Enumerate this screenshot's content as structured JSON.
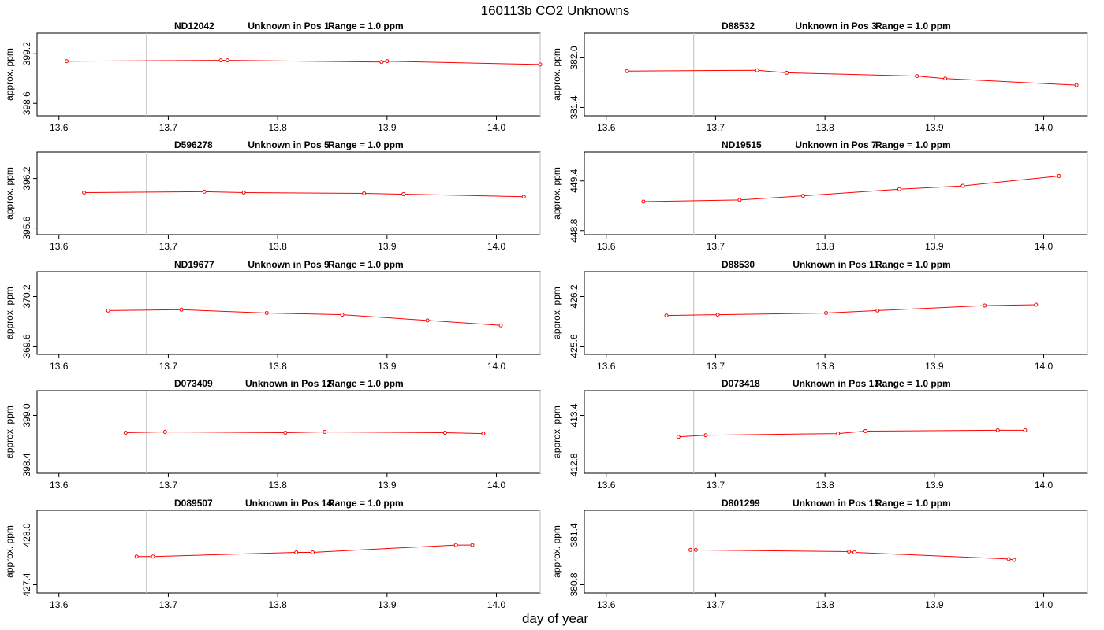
{
  "title": "160113b  CO2 Unknowns",
  "xlabel": "day of year",
  "ylabel": "approx. ppm",
  "colors": {
    "series": "#ff0000",
    "vline": "#c8c8c8",
    "axis": "#000000"
  },
  "chart_data": [
    {
      "type": "line",
      "id": "ND12042",
      "pos_label": "Unknown in Pos 1",
      "range_label": "Range = 1.0 ppm",
      "xlim": [
        13.58,
        14.04
      ],
      "ylim": [
        398.45,
        399.45
      ],
      "xticks": [
        13.6,
        13.7,
        13.8,
        13.9,
        14.0
      ],
      "xtick_labels": [
        "13.6",
        "13.7",
        "13.8",
        "13.9",
        "14.0"
      ],
      "yticks": [
        398.6,
        399.2
      ],
      "ytick_labels": [
        "398.6",
        "399.2"
      ],
      "vlines": [
        13.68,
        14.04
      ],
      "x": [
        13.607,
        13.748,
        13.754,
        13.895,
        13.9,
        14.04
      ],
      "y": [
        399.11,
        399.12,
        399.12,
        399.1,
        399.11,
        399.07
      ]
    },
    {
      "type": "line",
      "id": "D88532",
      "pos_label": "Unknown in Pos 3",
      "range_label": "Range = 1.0 ppm",
      "xlim": [
        13.58,
        14.04
      ],
      "ylim": [
        381.3,
        382.3
      ],
      "xticks": [
        13.6,
        13.7,
        13.8,
        13.9,
        14.0
      ],
      "xtick_labels": [
        "13.6",
        "13.7",
        "13.8",
        "13.9",
        "14.0"
      ],
      "yticks": [
        381.4,
        382.0
      ],
      "ytick_labels": [
        "381.4",
        "382.0"
      ],
      "vlines": [
        13.68,
        14.04
      ],
      "x": [
        13.619,
        13.738,
        13.765,
        13.884,
        13.91,
        14.03
      ],
      "y": [
        381.84,
        381.85,
        381.82,
        381.78,
        381.75,
        381.67
      ]
    },
    {
      "type": "line",
      "id": "D596278",
      "pos_label": "Unknown in Pos 5",
      "range_label": "Range = 1.0 ppm",
      "xlim": [
        13.58,
        14.04
      ],
      "ylim": [
        395.52,
        396.52
      ],
      "xticks": [
        13.6,
        13.7,
        13.8,
        13.9,
        14.0
      ],
      "xtick_labels": [
        "13.6",
        "13.7",
        "13.8",
        "13.9",
        "14.0"
      ],
      "yticks": [
        395.6,
        396.2
      ],
      "ytick_labels": [
        "395.6",
        "396.2"
      ],
      "vlines": [
        13.68,
        14.04
      ],
      "x": [
        13.623,
        13.733,
        13.769,
        13.879,
        13.915,
        14.025
      ],
      "y": [
        396.03,
        396.04,
        396.03,
        396.02,
        396.01,
        395.98
      ]
    },
    {
      "type": "line",
      "id": "ND19515",
      "pos_label": "Unknown in Pos 7",
      "range_label": "Range = 1.0 ppm",
      "xlim": [
        13.58,
        14.04
      ],
      "ylim": [
        448.75,
        449.75
      ],
      "xticks": [
        13.6,
        13.7,
        13.8,
        13.9,
        14.0
      ],
      "xtick_labels": [
        "13.6",
        "13.7",
        "13.8",
        "13.9",
        "14.0"
      ],
      "yticks": [
        448.8,
        449.4
      ],
      "ytick_labels": [
        "448.8",
        "449.4"
      ],
      "vlines": [
        13.68,
        14.04
      ],
      "x": [
        13.634,
        13.722,
        13.78,
        13.868,
        13.926,
        14.014
      ],
      "y": [
        449.15,
        449.17,
        449.22,
        449.3,
        449.34,
        449.46
      ]
    },
    {
      "type": "line",
      "id": "ND19677",
      "pos_label": "Unknown in Pos 9",
      "range_label": "Range = 1.0 ppm",
      "xlim": [
        13.58,
        14.04
      ],
      "ylim": [
        369.5,
        370.5
      ],
      "xticks": [
        13.6,
        13.7,
        13.8,
        13.9,
        14.0
      ],
      "xtick_labels": [
        "13.6",
        "13.7",
        "13.8",
        "13.9",
        "14.0"
      ],
      "yticks": [
        369.6,
        370.2
      ],
      "ytick_labels": [
        "369.6",
        "370.2"
      ],
      "vlines": [
        13.68,
        14.04
      ],
      "x": [
        13.645,
        13.712,
        13.79,
        13.859,
        13.937,
        14.004
      ],
      "y": [
        370.03,
        370.04,
        370.0,
        369.98,
        369.91,
        369.85
      ]
    },
    {
      "type": "line",
      "id": "D88530",
      "pos_label": "Unknown in Pos 11",
      "range_label": "Range = 1.0 ppm",
      "xlim": [
        13.58,
        14.04
      ],
      "ylim": [
        425.5,
        426.5
      ],
      "xticks": [
        13.6,
        13.7,
        13.8,
        13.9,
        14.0
      ],
      "xtick_labels": [
        "13.6",
        "13.7",
        "13.8",
        "13.9",
        "14.0"
      ],
      "yticks": [
        425.6,
        426.2
      ],
      "ytick_labels": [
        "425.6",
        "426.2"
      ],
      "vlines": [
        13.68,
        14.04
      ],
      "x": [
        13.655,
        13.702,
        13.801,
        13.848,
        13.946,
        13.993
      ],
      "y": [
        425.97,
        425.98,
        426.0,
        426.03,
        426.09,
        426.1
      ]
    },
    {
      "type": "line",
      "id": "D073409",
      "pos_label": "Unknown in Pos 12",
      "range_label": "Range = 1.0 ppm",
      "xlim": [
        13.58,
        14.04
      ],
      "ylim": [
        398.3,
        399.3
      ],
      "xticks": [
        13.6,
        13.7,
        13.8,
        13.9,
        14.0
      ],
      "xtick_labels": [
        "13.6",
        "13.7",
        "13.8",
        "13.9",
        "14.0"
      ],
      "yticks": [
        398.4,
        399.0
      ],
      "ytick_labels": [
        "398.4",
        "399.0"
      ],
      "vlines": [
        13.68,
        14.04
      ],
      "x": [
        13.661,
        13.697,
        13.807,
        13.843,
        13.953,
        13.988
      ],
      "y": [
        398.79,
        398.8,
        398.79,
        398.8,
        398.79,
        398.78
      ]
    },
    {
      "type": "line",
      "id": "D073418",
      "pos_label": "Unknown in Pos 13",
      "range_label": "Range = 1.0 ppm",
      "xlim": [
        13.58,
        14.04
      ],
      "ylim": [
        412.7,
        413.7
      ],
      "xticks": [
        13.6,
        13.7,
        13.8,
        13.9,
        14.0
      ],
      "xtick_labels": [
        "13.6",
        "13.7",
        "13.8",
        "13.9",
        "14.0"
      ],
      "yticks": [
        412.8,
        413.4
      ],
      "ytick_labels": [
        "412.8",
        "413.4"
      ],
      "vlines": [
        13.68,
        14.04
      ],
      "x": [
        13.666,
        13.691,
        13.812,
        13.837,
        13.958,
        13.983
      ],
      "y": [
        413.14,
        413.16,
        413.18,
        413.21,
        413.22,
        413.22
      ]
    },
    {
      "type": "line",
      "id": "D089507",
      "pos_label": "Unknown in Pos 14",
      "range_label": "Range = 1.0 ppm",
      "xlim": [
        13.58,
        14.04
      ],
      "ylim": [
        427.3,
        428.3
      ],
      "xticks": [
        13.6,
        13.7,
        13.8,
        13.9,
        14.0
      ],
      "xtick_labels": [
        "13.6",
        "13.7",
        "13.8",
        "13.9",
        "14.0"
      ],
      "yticks": [
        427.4,
        428.0
      ],
      "ytick_labels": [
        "427.4",
        "428.0"
      ],
      "vlines": [
        13.68,
        14.04
      ],
      "x": [
        13.671,
        13.686,
        13.817,
        13.832,
        13.963,
        13.978
      ],
      "y": [
        427.74,
        427.74,
        427.79,
        427.79,
        427.88,
        427.88
      ]
    },
    {
      "type": "line",
      "id": "D801299",
      "pos_label": "Unknown in Pos 15",
      "range_label": "Range = 1.0 ppm",
      "xlim": [
        13.58,
        14.04
      ],
      "ylim": [
        380.7,
        381.7
      ],
      "xticks": [
        13.6,
        13.7,
        13.8,
        13.9,
        14.0
      ],
      "xtick_labels": [
        "13.6",
        "13.7",
        "13.8",
        "13.9",
        "14.0"
      ],
      "yticks": [
        380.8,
        381.4
      ],
      "ytick_labels": [
        "380.8",
        "381.4"
      ],
      "vlines": [
        13.68,
        14.04
      ],
      "x": [
        13.677,
        13.682,
        13.822,
        13.827,
        13.968,
        13.973
      ],
      "y": [
        381.22,
        381.22,
        381.2,
        381.19,
        381.11,
        381.1
      ]
    }
  ]
}
